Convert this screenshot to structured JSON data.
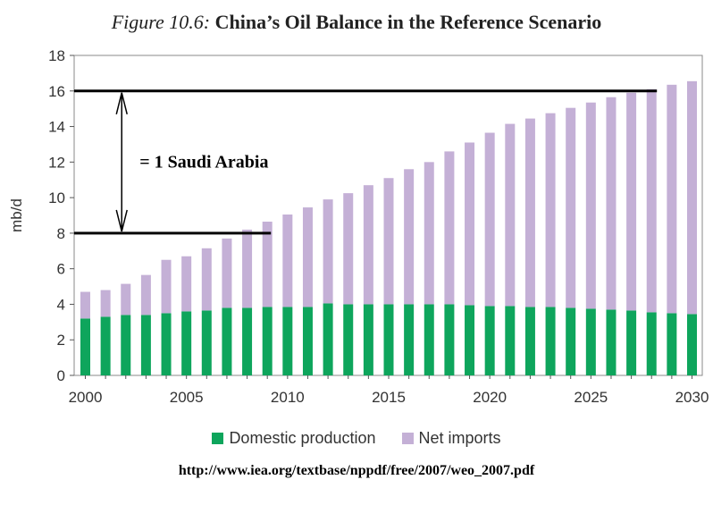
{
  "header": {
    "figure_label": "Figure 10.6:",
    "title": "China’s Oil Balance in the Reference Scenario"
  },
  "colors": {
    "domestic": "#0ea55c",
    "imports": "#c4b0d6",
    "border": "#8a8a8a"
  },
  "chart_data": {
    "type": "bar",
    "stacked": true,
    "ylabel": "mb/d",
    "ylim": [
      0,
      18
    ],
    "yticks": [
      0,
      2,
      4,
      6,
      8,
      10,
      12,
      14,
      16,
      18
    ],
    "xticks": [
      "2000",
      "2005",
      "2010",
      "2015",
      "2020",
      "2025",
      "2030"
    ],
    "categories": [
      2000,
      2001,
      2002,
      2003,
      2004,
      2005,
      2006,
      2007,
      2008,
      2009,
      2010,
      2011,
      2012,
      2013,
      2014,
      2015,
      2016,
      2017,
      2018,
      2019,
      2020,
      2021,
      2022,
      2023,
      2024,
      2025,
      2026,
      2027,
      2028,
      2029,
      2030
    ],
    "series": [
      {
        "name": "Domestic production",
        "values": [
          3.2,
          3.3,
          3.4,
          3.4,
          3.5,
          3.6,
          3.65,
          3.8,
          3.8,
          3.85,
          3.85,
          3.85,
          4.05,
          4.0,
          4.0,
          4.0,
          4.0,
          4.0,
          4.0,
          3.95,
          3.9,
          3.9,
          3.85,
          3.85,
          3.8,
          3.75,
          3.7,
          3.65,
          3.55,
          3.5,
          3.45
        ]
      },
      {
        "name": "Net imports",
        "values": [
          1.5,
          1.5,
          1.75,
          2.25,
          3.0,
          3.1,
          3.5,
          3.9,
          4.4,
          4.8,
          5.2,
          5.6,
          5.85,
          6.25,
          6.7,
          7.1,
          7.6,
          8.0,
          8.6,
          9.15,
          9.75,
          10.25,
          10.6,
          10.9,
          11.25,
          11.6,
          11.95,
          12.25,
          12.55,
          12.85,
          13.1
        ]
      }
    ],
    "annotation": {
      "label": "= 1 Saudi Arabia",
      "upper": 16,
      "lower": 8,
      "upper_line_end_year": 2028,
      "lower_line_end_year": 2009,
      "arrow_year": 2001.8
    },
    "legend_position": "bottom",
    "grid": false
  },
  "source": "http://www.iea.org/textbase/nppdf/free/2007/weo_2007.pdf"
}
